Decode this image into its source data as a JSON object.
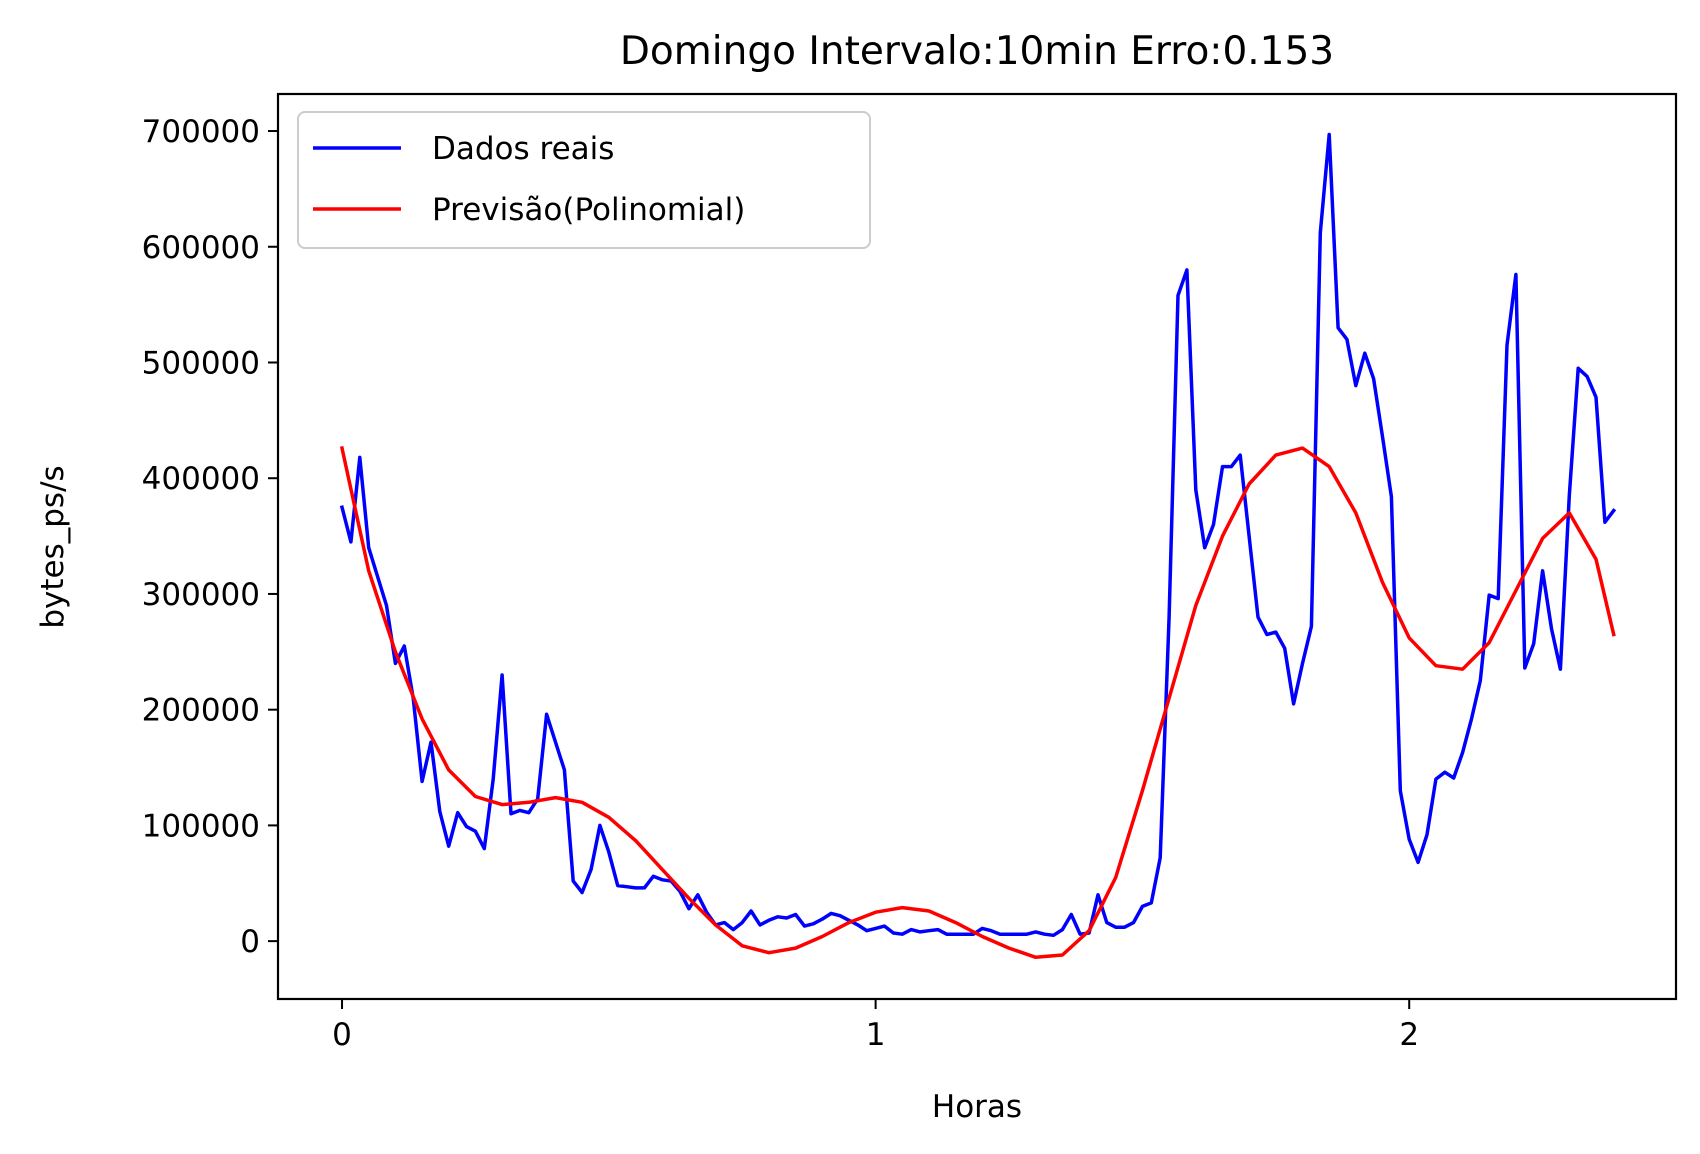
{
  "chart_data": {
    "type": "line",
    "title": "Domingo Intervalo:10min Erro:0.153",
    "xlabel": "Horas",
    "ylabel": "bytes_ps/s",
    "xlim": [
      -0.12,
      2.5
    ],
    "ylim": [
      -50000,
      732000
    ],
    "xticks": [
      0,
      1,
      2
    ],
    "yticks": [
      0,
      100000,
      200000,
      300000,
      400000,
      500000,
      600000,
      700000
    ],
    "grid": false,
    "legend_position": "top-left",
    "series": [
      {
        "name": "Dados reais",
        "color": "#0000ff",
        "x": [
          0.0,
          0.0167,
          0.0333,
          0.05,
          0.0667,
          0.0833,
          0.1,
          0.1167,
          0.1333,
          0.15,
          0.1667,
          0.1833,
          0.2,
          0.2167,
          0.2333,
          0.25,
          0.2667,
          0.2833,
          0.3,
          0.3167,
          0.3333,
          0.35,
          0.3667,
          0.3833,
          0.4,
          0.4167,
          0.4333,
          0.45,
          0.4667,
          0.4833,
          0.5,
          0.5167,
          0.5333,
          0.55,
          0.5667,
          0.5833,
          0.6,
          0.6167,
          0.6333,
          0.65,
          0.6667,
          0.6833,
          0.7,
          0.7167,
          0.7333,
          0.75,
          0.7667,
          0.7833,
          0.8,
          0.8167,
          0.8333,
          0.85,
          0.8667,
          0.8833,
          0.9,
          0.9167,
          0.9333,
          0.95,
          0.9667,
          0.9833,
          1.0,
          1.0167,
          1.0333,
          1.05,
          1.0667,
          1.0833,
          1.1,
          1.1167,
          1.1333,
          1.15,
          1.1667,
          1.1833,
          1.2,
          1.2167,
          1.2333,
          1.25,
          1.2667,
          1.2833,
          1.3,
          1.3167,
          1.3333,
          1.35,
          1.3667,
          1.3833,
          1.4,
          1.4167,
          1.4333,
          1.45,
          1.4667,
          1.4833,
          1.5,
          1.5167,
          1.5333,
          1.55,
          1.5667,
          1.5833,
          1.6,
          1.6167,
          1.6333,
          1.65,
          1.6667,
          1.6833,
          1.7,
          1.7167,
          1.7333,
          1.75,
          1.7667,
          1.7833,
          1.8,
          1.8167,
          1.8333,
          1.85,
          1.8667,
          1.8833,
          1.9,
          1.9167,
          1.9333,
          1.95,
          1.9667,
          1.9833,
          2.0,
          2.0167,
          2.0333,
          2.05,
          2.0667,
          2.0833,
          2.1,
          2.1167,
          2.1333,
          2.15,
          2.1667,
          2.1833,
          2.2,
          2.2167,
          2.2333,
          2.25,
          2.2667,
          2.2833,
          2.3,
          2.3167,
          2.3333,
          2.35,
          2.3667,
          2.3833
        ],
        "values": [
          375000,
          345000,
          418000,
          340000,
          315000,
          290000,
          240000,
          255000,
          210000,
          138000,
          172000,
          112000,
          82000,
          111000,
          99000,
          95000,
          80000,
          140000,
          230000,
          110000,
          113000,
          111000,
          123000,
          196000,
          172000,
          148000,
          52000,
          42000,
          62000,
          100000,
          77000,
          48000,
          47000,
          46000,
          46000,
          56000,
          53000,
          52000,
          43000,
          28000,
          40000,
          25000,
          14000,
          16000,
          10000,
          16000,
          26000,
          14000,
          18000,
          21000,
          20000,
          23000,
          13000,
          15000,
          19000,
          24000,
          22000,
          18000,
          14000,
          9000,
          11000,
          13000,
          7000,
          6000,
          10000,
          8000,
          9000,
          10000,
          6000,
          6000,
          6000,
          6000,
          11000,
          9000,
          6000,
          6000,
          6000,
          6000,
          8000,
          6000,
          5000,
          10000,
          23000,
          6000,
          7000,
          40000,
          16000,
          12000,
          12000,
          16000,
          30000,
          33000,
          72000,
          280000,
          558000,
          580000,
          390000,
          340000,
          360000,
          410000,
          410000,
          420000,
          350000,
          280000,
          265000,
          267000,
          253000,
          205000,
          240000,
          272000,
          612000,
          697000,
          530000,
          520000,
          480000,
          508000,
          486000,
          436000,
          384000,
          130000,
          88000,
          68000,
          92000,
          140000,
          146000,
          141000,
          163000,
          192000,
          225000,
          299000,
          296000,
          515000,
          576000,
          236000,
          257000,
          320000,
          270000,
          235000,
          385000,
          495000,
          488000,
          470000,
          362000,
          372000
        ]
      },
      {
        "name": "Previsão(Polinomial)",
        "color": "#ff0000",
        "x": [
          0.0,
          0.05,
          0.1,
          0.15,
          0.2,
          0.25,
          0.3,
          0.35,
          0.4,
          0.45,
          0.5,
          0.55,
          0.6,
          0.65,
          0.7,
          0.75,
          0.8,
          0.85,
          0.9,
          0.95,
          1.0,
          1.05,
          1.1,
          1.15,
          1.2,
          1.25,
          1.3,
          1.35,
          1.4,
          1.45,
          1.5,
          1.55,
          1.6,
          1.65,
          1.7,
          1.75,
          1.8,
          1.85,
          1.9,
          1.95,
          2.0,
          2.05,
          2.1,
          2.15,
          2.2,
          2.25,
          2.3,
          2.35,
          2.3833
        ],
        "values": [
          426000,
          320000,
          250000,
          192000,
          148000,
          125000,
          118000,
          120000,
          124000,
          120000,
          107000,
          87000,
          62000,
          37000,
          14000,
          -4000,
          -10000,
          -6000,
          4000,
          16000,
          25000,
          29000,
          26000,
          16000,
          4000,
          -6000,
          -14000,
          -12000,
          9000,
          55000,
          130000,
          210000,
          290000,
          350000,
          395000,
          420000,
          426000,
          410000,
          370000,
          310000,
          262000,
          238000,
          235000,
          258000,
          303000,
          348000,
          370000,
          330000,
          265000
        ]
      }
    ]
  }
}
